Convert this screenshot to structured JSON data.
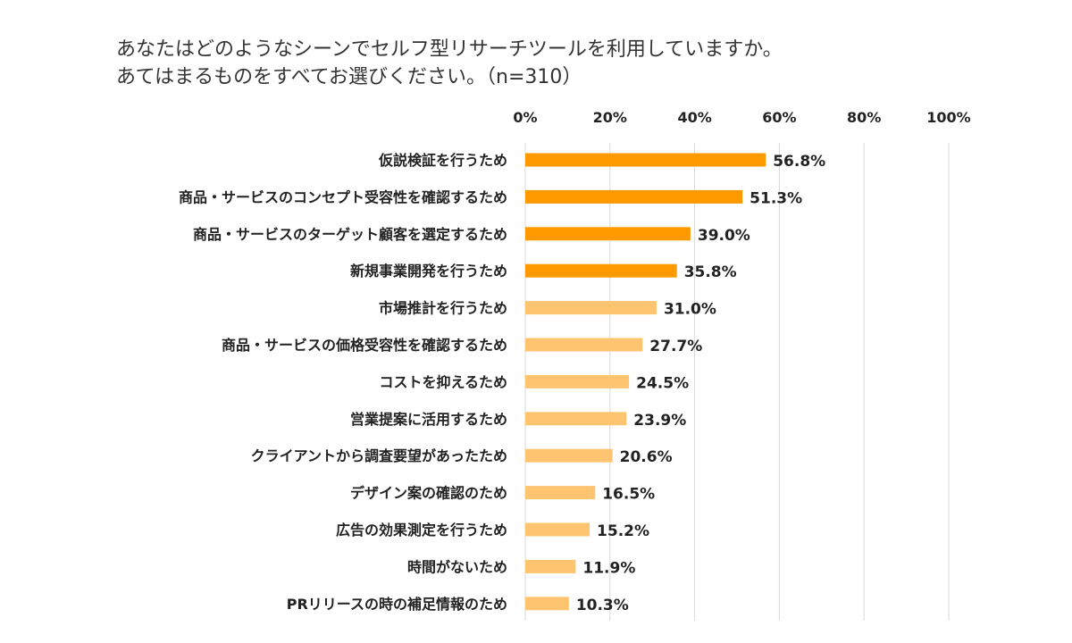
{
  "chart_data": {
    "type": "bar",
    "orientation": "horizontal",
    "title_lines": [
      "あなたはどのようなシーンでセルフ型リサーチツールを利用していますか。",
      "あてはまるものをすべてお選びください。（n=310）"
    ],
    "categories": [
      "仮説検証を行うため",
      "商品・サービスのコンセプト受容性を確認するため",
      "商品・サービスのターゲット顧客を選定するため",
      "新規事業開発を行うため",
      "市場推計を行うため",
      "商品・サービスの価格受容性を確認するため",
      "コストを抑えるため",
      "営業提案に活用するため",
      "クライアントから調査要望があったため",
      "デザイン案の確認のため",
      "広告の効果測定を行うため",
      "時間がないため",
      "PRリリースの時の補足情報のため"
    ],
    "values": [
      56.8,
      51.3,
      39.0,
      35.8,
      31.0,
      27.7,
      24.5,
      23.9,
      20.6,
      16.5,
      15.2,
      11.9,
      10.3
    ],
    "data_labels": [
      "56.8%",
      "51.3%",
      "39.0%",
      "35.8%",
      "31.0%",
      "27.7%",
      "24.5%",
      "23.9%",
      "20.6%",
      "16.5%",
      "15.2%",
      "11.9%",
      "10.3%"
    ],
    "highlighted_count": 4,
    "xticks": [
      "0%",
      "20%",
      "40%",
      "60%",
      "80%",
      "100%"
    ],
    "xlim": [
      0,
      100
    ],
    "x_axis_position": "top",
    "grid": true,
    "colors": {
      "highlight": "#FF9900",
      "normal": "#FFC470",
      "grid": "#D9D9D9",
      "text": "#222222"
    }
  }
}
